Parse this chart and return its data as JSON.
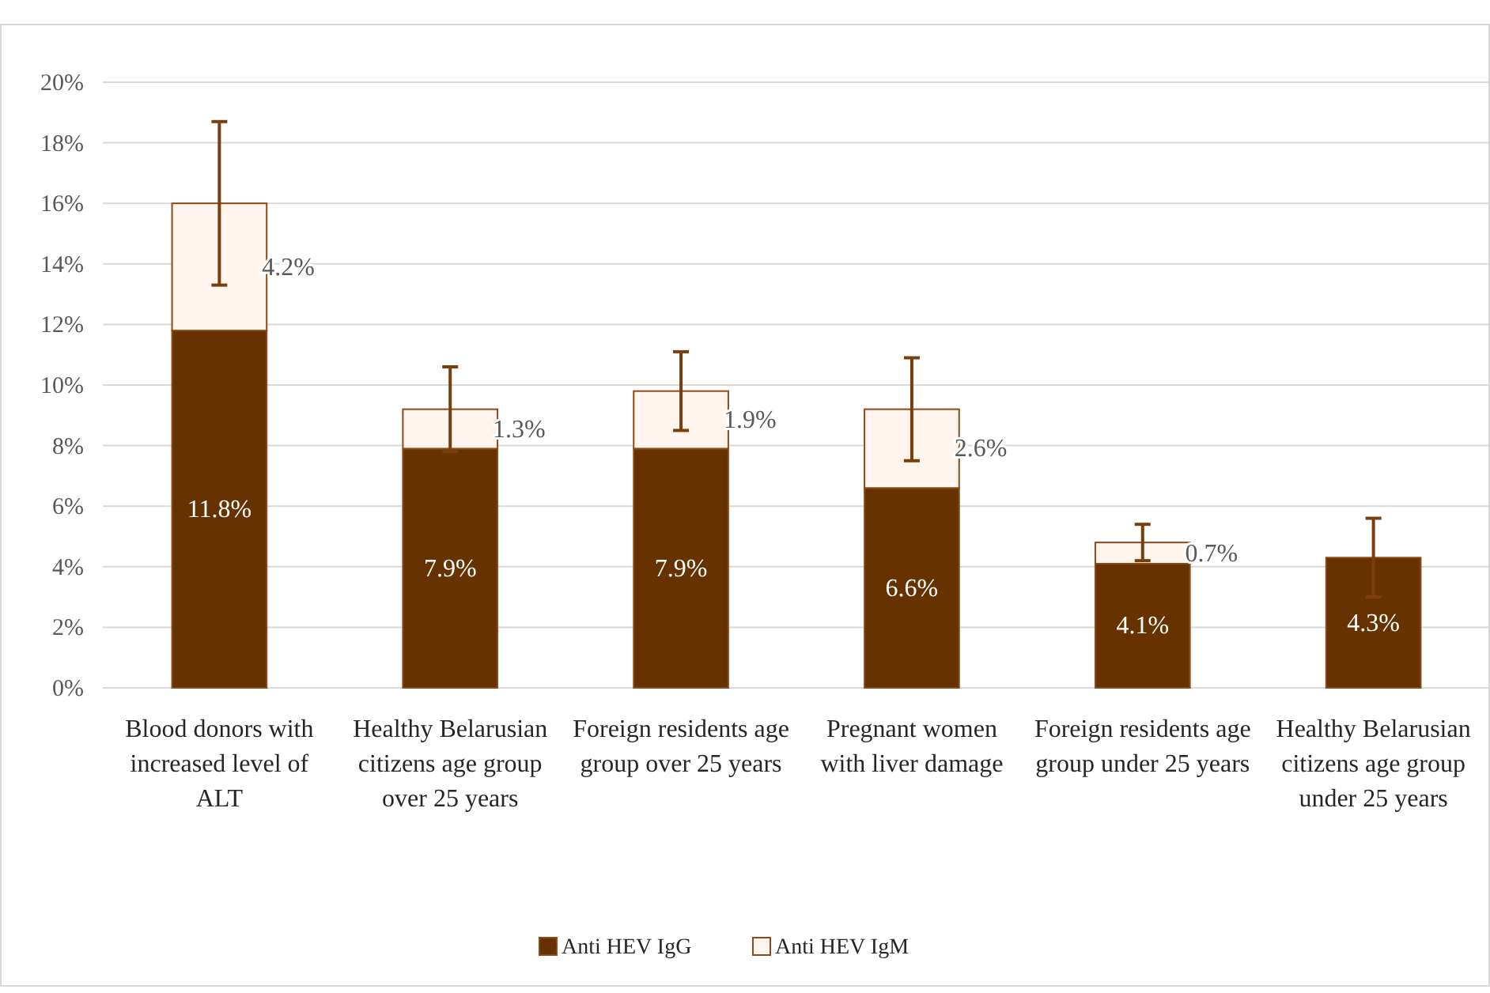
{
  "chart_data": {
    "type": "bar",
    "stacked": true,
    "categories": [
      "Blood donors with increased level of ALT",
      "Healthy Belarusian citizens age group over 25 years",
      "Foreign residents age group over 25 years",
      "Pregnant women with liver damage",
      "Foreign residents age group under 25 years",
      "Healthy Belarusian citizens age group under 25 years"
    ],
    "series": [
      {
        "name": "Anti HEV IgG",
        "color": "#663300",
        "values": [
          11.8,
          7.9,
          7.9,
          6.6,
          4.1,
          4.3
        ],
        "value_labels": [
          "11.8%",
          "7.9%",
          "7.9%",
          "6.6%",
          "4.1%",
          "4.3%"
        ],
        "errors": [
          null,
          null,
          null,
          null,
          null,
          1.3
        ]
      },
      {
        "name": "Anti HEV IgM",
        "color": "#fff5ee",
        "values": [
          4.2,
          1.3,
          1.9,
          2.6,
          0.7,
          null
        ],
        "value_labels": [
          "4.2%",
          "1.3%",
          "1.9%",
          "2.6%",
          "0.7%",
          null
        ],
        "errors": [
          2.7,
          1.4,
          1.3,
          1.7,
          0.6,
          null
        ]
      }
    ],
    "ylim": [
      0,
      20
    ],
    "yticks": [
      {
        "value": 0,
        "label": "0%"
      },
      {
        "value": 2,
        "label": "2%"
      },
      {
        "value": 4,
        "label": "4%"
      },
      {
        "value": 6,
        "label": "6%"
      },
      {
        "value": 8,
        "label": "8%"
      },
      {
        "value": 10,
        "label": "10%"
      },
      {
        "value": 12,
        "label": "12%"
      },
      {
        "value": 14,
        "label": "14%"
      },
      {
        "value": 16,
        "label": "16%"
      },
      {
        "value": 18,
        "label": "18%"
      },
      {
        "value": 20,
        "label": "20%"
      }
    ],
    "grid": "y",
    "legend": "bottom"
  }
}
